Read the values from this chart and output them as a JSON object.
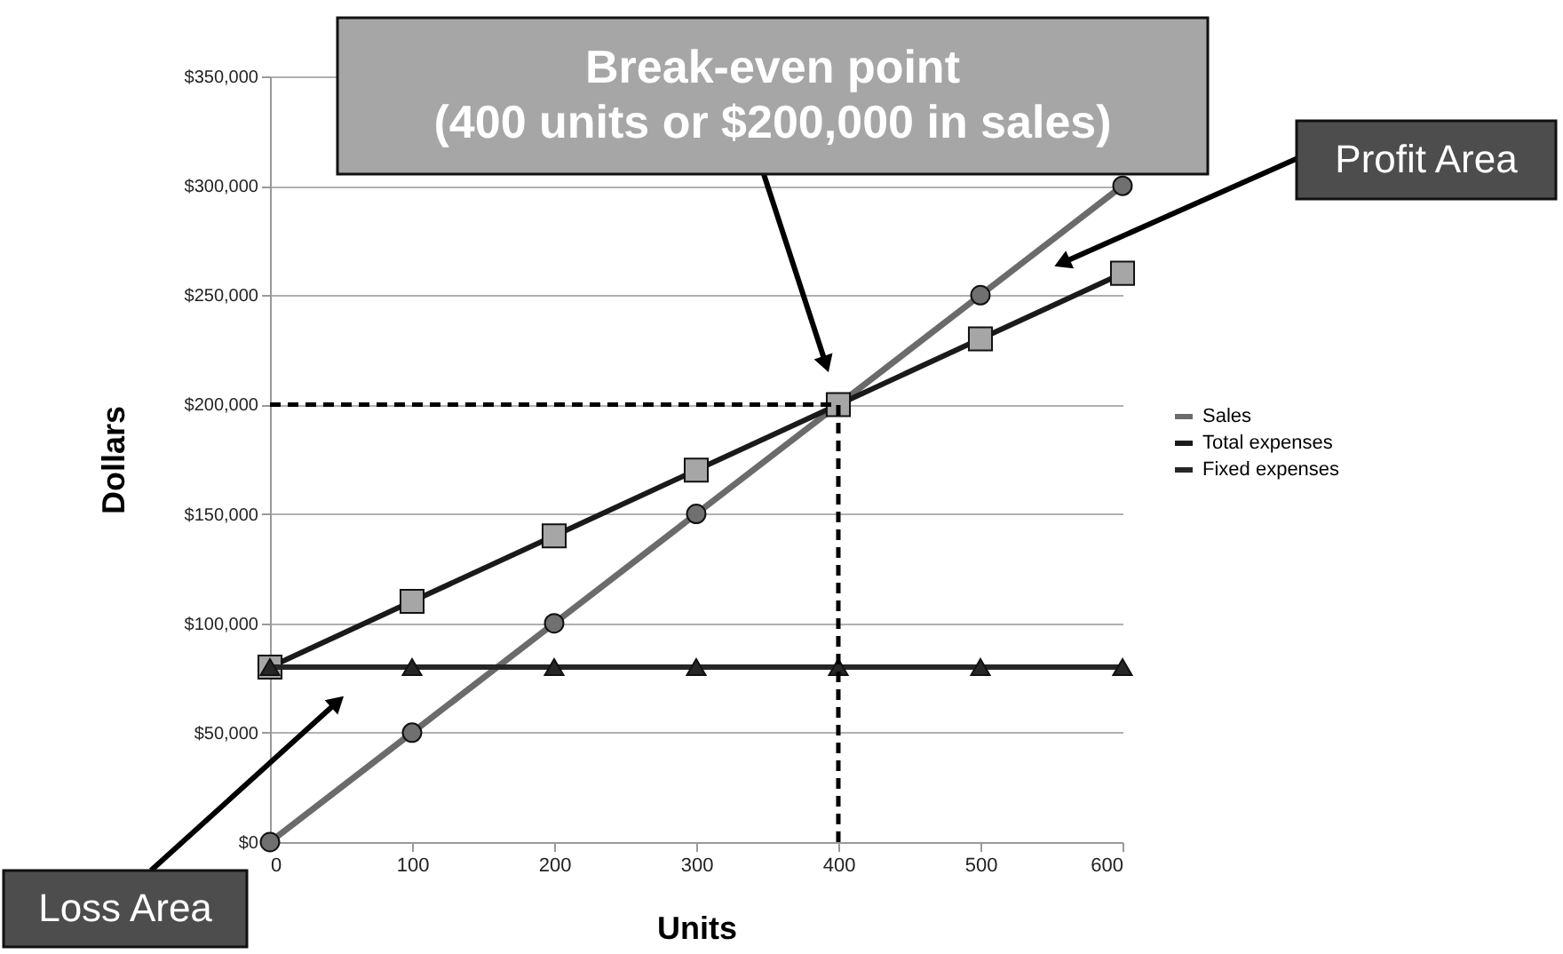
{
  "chart_data": {
    "type": "line",
    "xlabel": "Units",
    "ylabel": "Dollars",
    "x": [
      0,
      100,
      200,
      300,
      400,
      500,
      600
    ],
    "series": [
      {
        "name": "Sales",
        "color": "#6b6b6b",
        "marker": "circle",
        "values": [
          0,
          50000,
          100000,
          150000,
          200000,
          250000,
          300000
        ]
      },
      {
        "name": "Total expenses",
        "color": "#1a1a1a",
        "marker": "square",
        "values": [
          80000,
          110000,
          140000,
          170000,
          200000,
          230000,
          260000
        ]
      },
      {
        "name": "Fixed expenses",
        "color": "#262626",
        "marker": "triangle",
        "values": [
          80000,
          80000,
          80000,
          80000,
          80000,
          80000,
          80000
        ]
      }
    ],
    "xlim": [
      0,
      600
    ],
    "xticks": [
      0,
      100,
      200,
      300,
      400,
      500,
      600
    ],
    "ylim": [
      0,
      350000
    ],
    "yticks": [
      {
        "value": 0,
        "label": "$0"
      },
      {
        "value": 50000,
        "label": "$50,000"
      },
      {
        "value": 100000,
        "label": "$100,000"
      },
      {
        "value": 150000,
        "label": "$150,000"
      },
      {
        "value": 200000,
        "label": "$200,000"
      },
      {
        "value": 250000,
        "label": "$250,000"
      },
      {
        "value": 300000,
        "label": "$300,000"
      },
      {
        "value": 350000,
        "label": "$350,000"
      }
    ],
    "grid": "y",
    "legend": "right",
    "line_style": "solid",
    "ref_lines": [
      {
        "axis": "x",
        "value": 400,
        "line_style": "dashed"
      },
      {
        "axis": "y",
        "value": 200000,
        "line_style": "dashed"
      }
    ],
    "annotations": [
      "Break-even point\n(400 units or $200,000 in sales)",
      "Profit Area",
      "Loss Area"
    ]
  }
}
